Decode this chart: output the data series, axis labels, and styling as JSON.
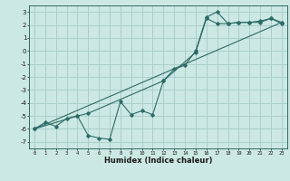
{
  "xlabel": "Humidex (Indice chaleur)",
  "bg_color": "#cce8e4",
  "grid_color": "#aacfcb",
  "line_color": "#2d6b65",
  "xlim": [
    -0.5,
    23.5
  ],
  "ylim": [
    -7.5,
    3.5
  ],
  "xticks": [
    0,
    1,
    2,
    3,
    4,
    5,
    6,
    7,
    8,
    9,
    10,
    11,
    12,
    13,
    14,
    15,
    16,
    17,
    18,
    19,
    20,
    21,
    22,
    23
  ],
  "yticks": [
    -7,
    -6,
    -5,
    -4,
    -3,
    -2,
    -1,
    0,
    1,
    2,
    3
  ],
  "series1_x": [
    0,
    1,
    2,
    3,
    4,
    5,
    6,
    7,
    8,
    9,
    10,
    11,
    12,
    13,
    14,
    15,
    16,
    17,
    18,
    19,
    20,
    21,
    22,
    23
  ],
  "series1_y": [
    -6.0,
    -5.5,
    -5.8,
    -5.2,
    -5.0,
    -6.5,
    -6.7,
    -6.8,
    -3.9,
    -4.9,
    -4.6,
    -4.9,
    -2.3,
    -1.4,
    -1.1,
    0.0,
    2.6,
    3.0,
    2.1,
    2.2,
    2.2,
    2.3,
    2.5,
    2.1
  ],
  "series2_x": [
    0,
    4,
    5,
    12,
    15,
    16,
    17,
    18,
    19,
    20,
    21,
    22,
    23
  ],
  "series2_y": [
    -6.0,
    -5.0,
    -4.8,
    -2.3,
    -0.1,
    2.5,
    2.1,
    2.1,
    2.2,
    2.2,
    2.2,
    2.5,
    2.2
  ],
  "series3_x": [
    0,
    23
  ],
  "series3_y": [
    -6.0,
    2.2
  ]
}
